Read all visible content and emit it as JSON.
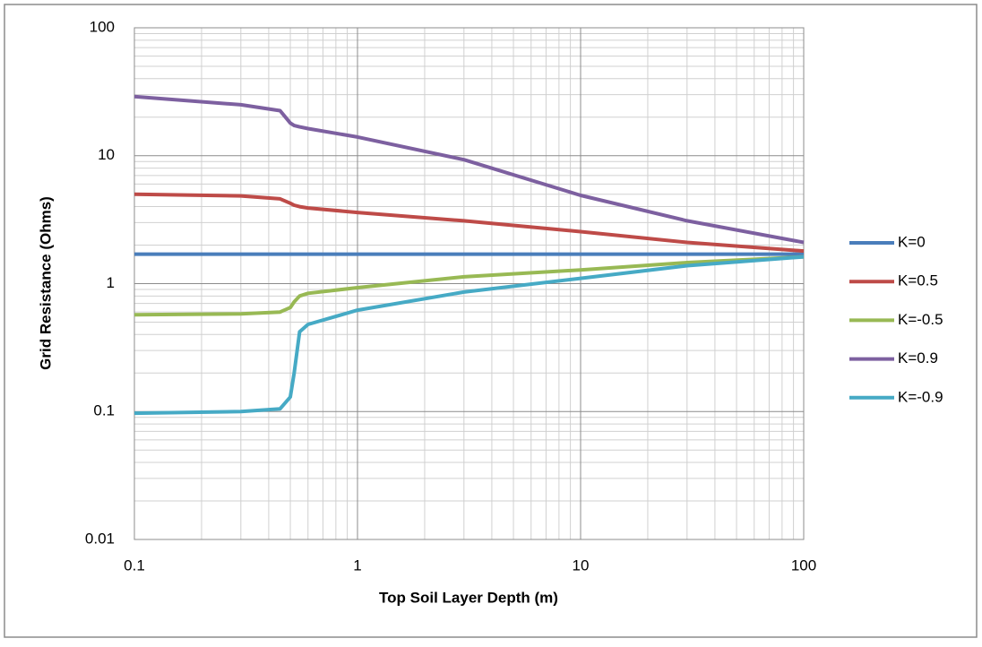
{
  "chart_data": {
    "type": "line",
    "xlabel": "Top Soil Layer Depth (m)",
    "ylabel": "Grid Resistance (Ohms)",
    "x": [
      0.1,
      0.3,
      0.45,
      0.5,
      0.52,
      0.55,
      0.6,
      1,
      3,
      10,
      30,
      100
    ],
    "series": [
      {
        "name": "K=0",
        "color": "#4a7ebb",
        "values": [
          1.7,
          1.7,
          1.7,
          1.7,
          1.7,
          1.7,
          1.7,
          1.7,
          1.7,
          1.7,
          1.7,
          1.7
        ]
      },
      {
        "name": "K=0.5",
        "color": "#be4b48",
        "values": [
          5,
          4.85,
          4.6,
          4.25,
          4.1,
          4.0,
          3.9,
          3.6,
          3.1,
          2.55,
          2.1,
          1.8
        ]
      },
      {
        "name": "K=-0.5",
        "color": "#98b954",
        "values": [
          0.57,
          0.58,
          0.6,
          0.65,
          0.72,
          0.8,
          0.84,
          0.93,
          1.13,
          1.28,
          1.46,
          1.62
        ]
      },
      {
        "name": "K=0.9",
        "color": "#7d60a0",
        "values": [
          29,
          25,
          22.5,
          18,
          17.2,
          16.8,
          16.3,
          14,
          9.3,
          4.9,
          3.1,
          2.1
        ]
      },
      {
        "name": "K=-0.9",
        "color": "#46aac5",
        "values": [
          0.097,
          0.1,
          0.105,
          0.13,
          0.2,
          0.42,
          0.48,
          0.62,
          0.86,
          1.1,
          1.38,
          1.62
        ]
      }
    ],
    "xlim": [
      0.1,
      100
    ],
    "xticks": [
      0.1,
      1,
      10,
      100
    ],
    "ylim": [
      0.01,
      100
    ],
    "yticks": [
      0.01,
      0.1,
      1,
      10,
      100
    ],
    "xscale": "log",
    "yscale": "log",
    "grid": true,
    "legend": "right"
  }
}
